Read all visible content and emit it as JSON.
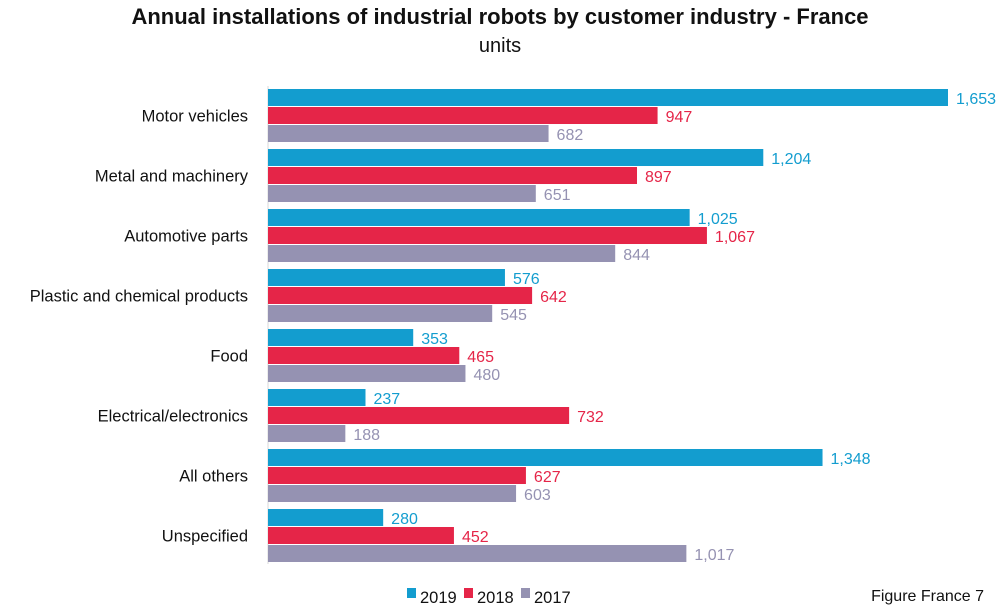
{
  "chart_data": {
    "type": "bar",
    "orientation": "horizontal",
    "title": "Annual installations of industrial robots by customer industry - France",
    "subtitle": "units",
    "categories": [
      "Motor vehicles",
      "Metal and machinery",
      "Automotive parts",
      "Plastic and chemical products",
      "Food",
      "Electrical/electronics",
      "All others",
      "Unspecified"
    ],
    "series": [
      {
        "name": "2019",
        "color": "#139dcf",
        "values": [
          1653,
          1204,
          1025,
          576,
          353,
          237,
          1348,
          280
        ]
      },
      {
        "name": "2018",
        "color": "#e52548",
        "values": [
          947,
          897,
          1067,
          642,
          465,
          732,
          627,
          452
        ]
      },
      {
        "name": "2017",
        "color": "#9592b2",
        "values": [
          682,
          651,
          844,
          545,
          480,
          188,
          603,
          1017
        ]
      }
    ],
    "value_labels": [
      [
        "1,653",
        "1,204",
        "1,025",
        "576",
        "353",
        "237",
        "1,348",
        "280"
      ],
      [
        "947",
        "897",
        "1,067",
        "642",
        "465",
        "732",
        "627",
        "452"
      ],
      [
        "682",
        "651",
        "844",
        "545",
        "480",
        "188",
        "603",
        "1,017"
      ]
    ],
    "xlim": [
      0,
      1653
    ],
    "grid": false,
    "legend_position": "bottom",
    "footnote": "Figure France 7"
  }
}
